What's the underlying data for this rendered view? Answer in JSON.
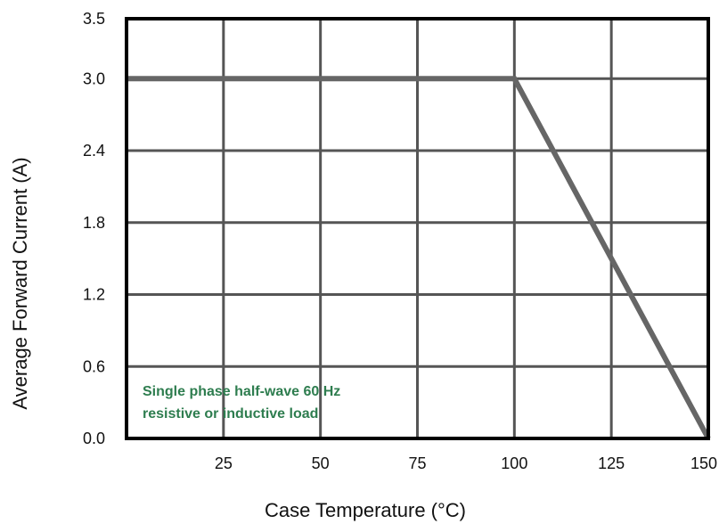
{
  "chart_data": {
    "type": "line",
    "title": "",
    "xlabel": "Case Temperature (°C)",
    "ylabel": "Average Forward Current  (A)",
    "xlim": [
      0,
      150
    ],
    "ylim": [
      0,
      3.5
    ],
    "x_ticks": [
      25,
      50,
      75,
      100,
      125,
      150
    ],
    "x_tick_labels": [
      "25",
      "50",
      "75",
      "100",
      "125",
      "150"
    ],
    "y_ticks": [
      0,
      0.6,
      1.2,
      1.8,
      2.4,
      3.0,
      3.5
    ],
    "y_tick_labels": [
      "0.0",
      "0.6",
      "1.2",
      "1.8",
      "2.4",
      "3.0",
      "3.5"
    ],
    "grid": true,
    "series": [
      {
        "x": [
          0,
          100,
          150
        ],
        "y": [
          3.0,
          3.0,
          0.0
        ]
      }
    ],
    "annotations": [
      "Single phase half-wave 60 Hz",
      "resistive or inductive load"
    ],
    "colors": {
      "line": "#666666",
      "grid": "#555555",
      "frame": "#000000",
      "annotation": "#2e7d4f"
    }
  }
}
